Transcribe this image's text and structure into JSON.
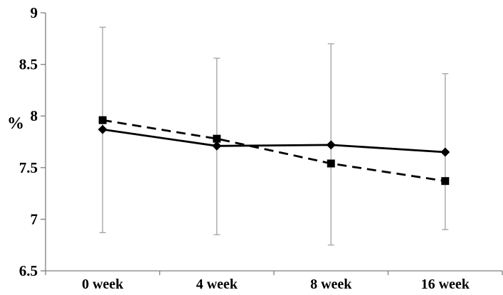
{
  "chart_data": {
    "type": "line",
    "title": "",
    "xlabel": "",
    "ylabel": "%",
    "categories": [
      "0 week",
      "4 week",
      "8 week",
      "16 week"
    ],
    "series": [
      {
        "name": "solid line with diamond markers",
        "marker": "diamond",
        "line_style": "solid",
        "values": [
          7.87,
          7.71,
          7.72,
          7.65
        ]
      },
      {
        "name": "dashed line with square markers",
        "marker": "square",
        "line_style": "dashed",
        "values": [
          7.96,
          7.78,
          7.54,
          7.37
        ]
      }
    ],
    "error_bars": [
      {
        "category": "0 week",
        "low": 6.87,
        "high": 8.86
      },
      {
        "category": "4 week",
        "low": 6.85,
        "high": 8.56
      },
      {
        "category": "8 week",
        "low": 6.75,
        "high": 8.7
      },
      {
        "category": "16 week",
        "low": 6.9,
        "high": 8.41
      }
    ],
    "ylim": [
      6.5,
      9
    ],
    "y_ticks": [
      9,
      8.5,
      8,
      7.5,
      7,
      6.5
    ],
    "y_tick_labels": [
      "9",
      "8.5",
      "8",
      "7.5",
      "7",
      "6.5"
    ],
    "grid": false,
    "legend": "none",
    "colors": {
      "series": "#000000",
      "error_bar": "#a8a8a8",
      "axis": "#7f7f7f",
      "text": "#000000",
      "background": "#ffffff"
    }
  }
}
